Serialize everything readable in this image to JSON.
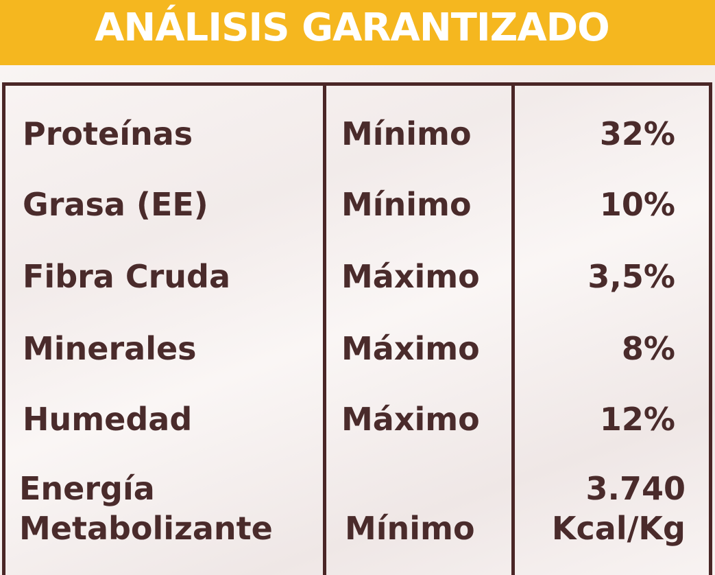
{
  "header": {
    "title": "ANÁLISIS GARANTIZADO"
  },
  "table": {
    "rows": [
      {
        "nutrient": [
          "Proteínas"
        ],
        "limit": "Mínimo",
        "value": [
          "32%"
        ]
      },
      {
        "nutrient": [
          "Grasa (EE)"
        ],
        "limit": "Mínimo",
        "value": [
          "10%"
        ]
      },
      {
        "nutrient": [
          "Fibra Cruda"
        ],
        "limit": "Máximo",
        "value": [
          "3,5%"
        ]
      },
      {
        "nutrient": [
          "Minerales"
        ],
        "limit": "Máximo",
        "value": [
          "8%"
        ]
      },
      {
        "nutrient": [
          "Humedad"
        ],
        "limit": "Máximo",
        "value": [
          "12%"
        ]
      },
      {
        "nutrient": [
          "Energía",
          "Metabolizante"
        ],
        "limit": "Mínimo",
        "value": [
          "3.740",
          "Kcal/Kg"
        ]
      }
    ]
  }
}
